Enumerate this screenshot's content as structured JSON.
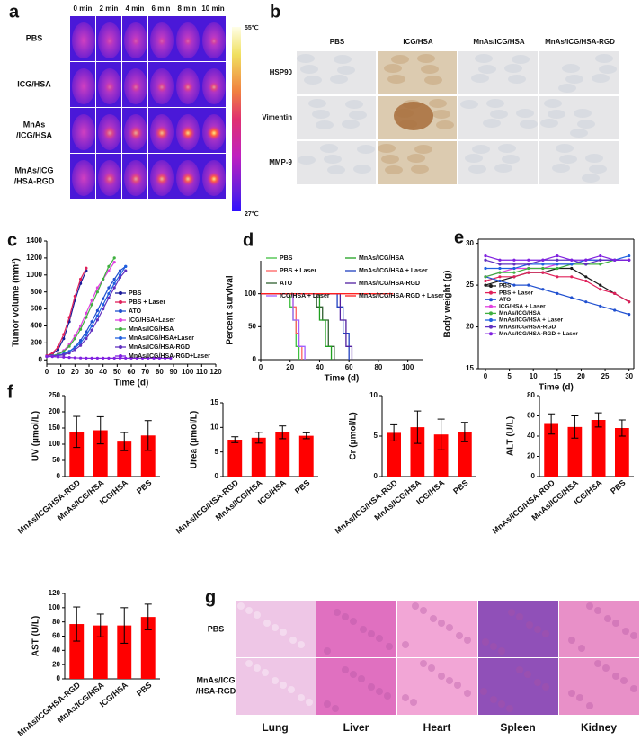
{
  "panel_letters": [
    "a",
    "b",
    "c",
    "d",
    "e",
    "f",
    "g"
  ],
  "thermal_images": {
    "times": [
      "0 min",
      "2 min",
      "4 min",
      "6 min",
      "8 min",
      "10 min"
    ],
    "rows": [
      [
        "PBS"
      ],
      [
        "ICG/HSA"
      ],
      [
        "MnAs",
        "/ICG/HSA"
      ],
      [
        "MnAs/ICG",
        "/HSA-RGD"
      ]
    ],
    "scale": [
      "55℃",
      "27℃"
    ]
  },
  "ihc_images": {
    "columns": [
      "PBS",
      "ICG/HSA",
      "MnAs/ICG/HSA",
      "MnAs/ICG/HSA-RGD"
    ],
    "rows": [
      "HSP90",
      "Vimentin",
      "MMP-9"
    ]
  },
  "he_images": {
    "rows": [
      [
        "PBS"
      ],
      [
        "MnAs/ICG",
        "/HSA-RGD"
      ]
    ],
    "columns": [
      "Lung",
      "Liver",
      "Heart",
      "Spleen",
      "Kidney"
    ]
  },
  "chart_data": [
    {
      "type": "line",
      "xlabel": "Time (d)",
      "ylabel": "Tumor volume (mm³)",
      "xlim": [
        0,
        120
      ],
      "xticks": [
        0,
        10,
        20,
        30,
        40,
        50,
        60,
        70,
        80,
        90,
        100,
        110,
        120
      ],
      "ylim": [
        -50,
        1400
      ],
      "yticks": [
        0,
        200,
        400,
        600,
        800,
        1000,
        1200,
        1400
      ],
      "legend": "right",
      "x": [
        0,
        4,
        8,
        12,
        16,
        20,
        24,
        28,
        32,
        36,
        40,
        44,
        48,
        52,
        56,
        60,
        64,
        68,
        72,
        76,
        80,
        84,
        88
      ],
      "series": [
        {
          "name": "PBS",
          "color": "#1a1a9a",
          "values": [
            50,
            70,
            120,
            250,
            450,
            700,
            900,
            1050,
            null,
            null,
            null,
            null,
            null,
            null,
            null,
            null,
            null,
            null,
            null,
            null,
            null,
            null,
            null
          ]
        },
        {
          "name": "PBS + Laser",
          "color": "#e0205a",
          "values": [
            50,
            80,
            150,
            300,
            500,
            750,
            950,
            1080,
            null,
            null,
            null,
            null,
            null,
            null,
            null,
            null,
            null,
            null,
            null,
            null,
            null,
            null,
            null
          ]
        },
        {
          "name": "ATO",
          "color": "#2050d0",
          "values": [
            40,
            45,
            55,
            70,
            100,
            150,
            230,
            330,
            450,
            580,
            720,
            850,
            950,
            1050,
            1100,
            null,
            null,
            null,
            null,
            null,
            null,
            null,
            null
          ]
        },
        {
          "name": "ICG/HSA+Laser",
          "color": "#e040e0",
          "values": [
            40,
            50,
            70,
            110,
            180,
            280,
            400,
            550,
            700,
            850,
            950,
            1050,
            1150,
            null,
            null,
            null,
            null,
            null,
            null,
            null,
            null,
            null,
            null
          ]
        },
        {
          "name": "MnAs/ICG/HSA",
          "color": "#40b040",
          "values": [
            40,
            50,
            65,
            100,
            160,
            250,
            360,
            500,
            650,
            800,
            950,
            1100,
            1200,
            null,
            null,
            null,
            null,
            null,
            null,
            null,
            null,
            null,
            null
          ]
        },
        {
          "name": "MnAs/ICG/HSA+Laser",
          "color": "#2060e0",
          "values": [
            40,
            45,
            55,
            70,
            100,
            140,
            200,
            290,
            400,
            520,
            650,
            780,
            900,
            1000,
            1100,
            null,
            null,
            null,
            null,
            null,
            null,
            null,
            null
          ]
        },
        {
          "name": "MnAs/ICG/HSA-RGD",
          "color": "#6030c0",
          "values": [
            40,
            45,
            50,
            60,
            80,
            120,
            170,
            250,
            350,
            470,
            600,
            730,
            850,
            970,
            1050,
            null,
            null,
            null,
            null,
            null,
            null,
            null,
            null
          ]
        },
        {
          "name": "MnAs/ICG/HSA-RGD+Laser",
          "color": "#8020e0",
          "values": [
            40,
            38,
            35,
            32,
            28,
            25,
            22,
            20,
            20,
            20,
            20,
            20,
            20,
            20,
            20,
            20,
            20,
            20,
            20,
            20,
            20,
            20,
            20
          ]
        }
      ]
    },
    {
      "type": "step",
      "xlabel": "Time (d)",
      "ylabel": "Percent survival",
      "xlim": [
        0,
        110
      ],
      "xticks": [
        0,
        20,
        40,
        60,
        80,
        100
      ],
      "ylim": [
        0,
        150
      ],
      "yticks": [
        0,
        50,
        100
      ],
      "legend": "top",
      "series": [
        {
          "name": "PBS",
          "color": "#40c040",
          "x": [
            0,
            20,
            22,
            24,
            26
          ],
          "values": [
            100,
            80,
            60,
            20,
            0
          ]
        },
        {
          "name": "PBS + Laser",
          "color": "#ff6060",
          "x": [
            0,
            22,
            24,
            26,
            28
          ],
          "values": [
            100,
            80,
            40,
            20,
            0
          ]
        },
        {
          "name": "ATO",
          "color": "#306030",
          "x": [
            0,
            38,
            42,
            46,
            50
          ],
          "values": [
            100,
            80,
            60,
            20,
            0
          ]
        },
        {
          "name": "ICG/HSA + Laser",
          "color": "#a060ff",
          "x": [
            0,
            22,
            26,
            30
          ],
          "values": [
            100,
            60,
            20,
            0
          ]
        },
        {
          "name": "MnAs/ICG/HSA",
          "color": "#20a020",
          "x": [
            0,
            40,
            44,
            48
          ],
          "values": [
            100,
            60,
            20,
            0
          ]
        },
        {
          "name": "MnAs/ICG/HSA + Laser",
          "color": "#2040c0",
          "x": [
            0,
            52,
            56,
            60
          ],
          "values": [
            100,
            80,
            40,
            0
          ]
        },
        {
          "name": "MnAs/ICG/HSA-RGD",
          "color": "#5020a0",
          "x": [
            0,
            54,
            58,
            62
          ],
          "values": [
            100,
            60,
            20,
            0
          ]
        },
        {
          "name": "MnAs/ICG/HSA-RGD + Laser",
          "color": "#ff2020",
          "x": [
            0,
            90
          ],
          "values": [
            100,
            100
          ]
        }
      ]
    },
    {
      "type": "line",
      "xlabel": "Time (d)",
      "ylabel": "Body weight (g)",
      "xlim": [
        -1.5,
        31
      ],
      "xticks": [
        0,
        5,
        10,
        15,
        20,
        25,
        30
      ],
      "ylim": [
        15,
        30.5
      ],
      "yticks": [
        15,
        20,
        25,
        30
      ],
      "legend": "left",
      "x": [
        0,
        3,
        6,
        9,
        12,
        15,
        18,
        21,
        24,
        27,
        30
      ],
      "series": [
        {
          "name": "PBS",
          "color": "#1a1a1a",
          "values": [
            25,
            25.5,
            26,
            26.5,
            26.5,
            27,
            27,
            26,
            25,
            24,
            23
          ]
        },
        {
          "name": "PBS + Laser",
          "color": "#e0205a",
          "values": [
            25.5,
            26,
            26,
            26.5,
            26.5,
            26,
            26,
            25.5,
            24.5,
            24,
            23
          ]
        },
        {
          "name": "ATO",
          "color": "#2050d0",
          "values": [
            26,
            25.5,
            25,
            25,
            24.5,
            24,
            23.5,
            23,
            22.5,
            22,
            21.5
          ]
        },
        {
          "name": "ICG/HSA + Laser",
          "color": "#e040e0",
          "values": [
            26,
            26.5,
            27,
            27,
            27,
            27.5,
            27.5,
            28,
            28,
            28,
            28
          ]
        },
        {
          "name": "MnAs/ICG/HSA",
          "color": "#40b040",
          "values": [
            26,
            26.5,
            26.5,
            27,
            27,
            27,
            27.5,
            27.5,
            27.5,
            28,
            28
          ]
        },
        {
          "name": "MnAs/ICG/HSA + Laser",
          "color": "#2060e0",
          "values": [
            27,
            27,
            27,
            27.5,
            27.5,
            27.5,
            27.5,
            28,
            28,
            28,
            28.5
          ]
        },
        {
          "name": "MnAs/ICG/HSA-RGD",
          "color": "#6030c0",
          "values": [
            28,
            27.5,
            27.5,
            27.5,
            28,
            28,
            28,
            27.5,
            28,
            28,
            28
          ]
        },
        {
          "name": "MnAs/ICG/HSA-RGD + Laser",
          "color": "#8020e0",
          "values": [
            28.5,
            28,
            28,
            28,
            28,
            28.5,
            28,
            28,
            28.5,
            28,
            28
          ]
        }
      ]
    },
    {
      "type": "bar",
      "ylabel": "UV (μmol/L)",
      "color": "#ff0000",
      "categories": [
        "MnAs/ICG/HSA-RGD",
        "MnAs/ICG/HSA",
        "ICG/HSA",
        "PBS"
      ],
      "values": [
        138,
        143,
        108,
        127
      ],
      "errors": [
        48,
        42,
        28,
        46
      ],
      "ylim": [
        0,
        250
      ],
      "yticks": [
        0,
        50,
        100,
        150,
        200,
        250
      ]
    },
    {
      "type": "bar",
      "ylabel": "Urea (μmol/L)",
      "color": "#ff0000",
      "categories": [
        "MnAs/ICG/HSA-RGD",
        "MnAs/ICG/HSA",
        "ICG/HSA",
        "PBS"
      ],
      "values": [
        7.5,
        7.9,
        9,
        8.3
      ],
      "errors": [
        0.6,
        1.1,
        1.3,
        0.6
      ],
      "ylim": [
        0,
        15
      ],
      "yticks": [
        0,
        5,
        10,
        15
      ]
    },
    {
      "type": "bar",
      "ylabel": "Cr (μmol/L)",
      "color": "#ff0000",
      "categories": [
        "MnAs/ICG/HSA-RGD",
        "MnAs/ICG/HSA",
        "ICG/HSA",
        "PBS"
      ],
      "values": [
        5.4,
        6.1,
        5.2,
        5.5
      ],
      "errors": [
        1,
        2,
        1.9,
        1.2
      ],
      "ylim": [
        0,
        10
      ],
      "yticks": [
        0,
        5,
        10
      ]
    },
    {
      "type": "bar",
      "ylabel": "ALT (U/L)",
      "color": "#ff0000",
      "categories": [
        "MnAs/ICG/HSA-RGD",
        "MnAs/ICG/HSA",
        "ICG/HSA",
        "PBS"
      ],
      "values": [
        52,
        49,
        56,
        48
      ],
      "errors": [
        10,
        11,
        7,
        8
      ],
      "ylim": [
        0,
        80
      ],
      "yticks": [
        0,
        20,
        40,
        60,
        80
      ]
    },
    {
      "type": "bar",
      "ylabel": "AST (U/L)",
      "color": "#ff0000",
      "categories": [
        "MnAs/ICG/HSA-RGD",
        "MnAs/ICG/HSA",
        "ICG/HSA",
        "PBS"
      ],
      "values": [
        77,
        75,
        75,
        87
      ],
      "errors": [
        24,
        16,
        25,
        18
      ],
      "ylim": [
        0,
        120
      ],
      "yticks": [
        0,
        20,
        40,
        60,
        80,
        100,
        120
      ]
    }
  ]
}
